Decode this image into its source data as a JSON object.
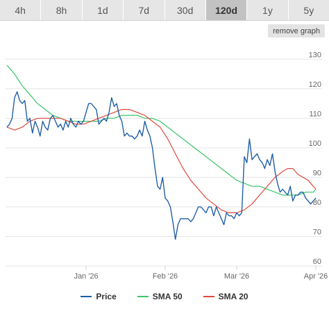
{
  "tabs": [
    {
      "label": "4h",
      "active": false
    },
    {
      "label": "8h",
      "active": false
    },
    {
      "label": "1d",
      "active": false
    },
    {
      "label": "7d",
      "active": false
    },
    {
      "label": "30d",
      "active": false
    },
    {
      "label": "120d",
      "active": true
    },
    {
      "label": "1y",
      "active": false
    },
    {
      "label": "5y",
      "active": false
    }
  ],
  "remove_graph_label": "remove graph",
  "colors": {
    "price": "#1f5fa6",
    "sma50": "#3cc46a",
    "sma20": "#e0483c",
    "grid": "#e5e5e5"
  },
  "chart_data": {
    "type": "line",
    "title": "",
    "xlabel": "",
    "ylabel": "",
    "ylim": [
      60,
      135
    ],
    "yticks": [
      60,
      70,
      80,
      90,
      100,
      110,
      120,
      130
    ],
    "xticks": [
      {
        "label": "Jan '26",
        "day": 31
      },
      {
        "label": "Feb '26",
        "day": 62
      },
      {
        "label": "Mar '26",
        "day": 90
      },
      {
        "label": "Apr '26",
        "day": 121
      }
    ],
    "x_range": [
      0,
      121
    ],
    "grid": true,
    "legend_position": "bottom",
    "series": [
      {
        "name": "Price",
        "color_key": "price",
        "points": [
          [
            0,
            107
          ],
          [
            1,
            108
          ],
          [
            2,
            110
          ],
          [
            3,
            117
          ],
          [
            4,
            119
          ],
          [
            5,
            116
          ],
          [
            6,
            115
          ],
          [
            7,
            116
          ],
          [
            8,
            109
          ],
          [
            9,
            110
          ],
          [
            10,
            105
          ],
          [
            11,
            109
          ],
          [
            12,
            107
          ],
          [
            13,
            104
          ],
          [
            14,
            109
          ],
          [
            15,
            107
          ],
          [
            16,
            106
          ],
          [
            17,
            110
          ],
          [
            18,
            111
          ],
          [
            19,
            109
          ],
          [
            20,
            107
          ],
          [
            21,
            108
          ],
          [
            22,
            106
          ],
          [
            23,
            109
          ],
          [
            24,
            107
          ],
          [
            25,
            110
          ],
          [
            26,
            108
          ],
          [
            27,
            107
          ],
          [
            28,
            109
          ],
          [
            29,
            108
          ],
          [
            30,
            109
          ],
          [
            31,
            112
          ],
          [
            32,
            115
          ],
          [
            33,
            115
          ],
          [
            34,
            114
          ],
          [
            35,
            113
          ],
          [
            36,
            108
          ],
          [
            37,
            109
          ],
          [
            38,
            110
          ],
          [
            39,
            109
          ],
          [
            40,
            112
          ],
          [
            41,
            117
          ],
          [
            42,
            114
          ],
          [
            43,
            115
          ],
          [
            44,
            111
          ],
          [
            45,
            109
          ],
          [
            46,
            104
          ],
          [
            47,
            105
          ],
          [
            48,
            104
          ],
          [
            49,
            104
          ],
          [
            50,
            103
          ],
          [
            51,
            104
          ],
          [
            52,
            106
          ],
          [
            53,
            104
          ],
          [
            54,
            109
          ],
          [
            55,
            106
          ],
          [
            56,
            104
          ],
          [
            57,
            100
          ],
          [
            58,
            93
          ],
          [
            59,
            87
          ],
          [
            60,
            86
          ],
          [
            61,
            90
          ],
          [
            62,
            83
          ],
          [
            63,
            82
          ],
          [
            64,
            80
          ],
          [
            65,
            75
          ],
          [
            66,
            69
          ],
          [
            67,
            74
          ],
          [
            68,
            76
          ],
          [
            69,
            76
          ],
          [
            70,
            76
          ],
          [
            71,
            76
          ],
          [
            72,
            75
          ],
          [
            73,
            76
          ],
          [
            74,
            78
          ],
          [
            75,
            80
          ],
          [
            76,
            80
          ],
          [
            77,
            79
          ],
          [
            78,
            78
          ],
          [
            79,
            80
          ],
          [
            80,
            80
          ],
          [
            81,
            77
          ],
          [
            82,
            80
          ],
          [
            83,
            78
          ],
          [
            84,
            76
          ],
          [
            85,
            74
          ],
          [
            86,
            78
          ],
          [
            87,
            77
          ],
          [
            88,
            77
          ],
          [
            89,
            76
          ],
          [
            90,
            78
          ],
          [
            91,
            77
          ],
          [
            92,
            78
          ],
          [
            93,
            97
          ],
          [
            94,
            95
          ],
          [
            95,
            103
          ],
          [
            96,
            96
          ],
          [
            97,
            97
          ],
          [
            98,
            98
          ],
          [
            99,
            96
          ],
          [
            100,
            95
          ],
          [
            101,
            93
          ],
          [
            102,
            96
          ],
          [
            103,
            94
          ],
          [
            104,
            98
          ],
          [
            105,
            92
          ],
          [
            106,
            88
          ],
          [
            107,
            85
          ],
          [
            108,
            86
          ],
          [
            109,
            85
          ],
          [
            110,
            84
          ],
          [
            111,
            87
          ],
          [
            112,
            82
          ],
          [
            113,
            84
          ],
          [
            114,
            84
          ],
          [
            115,
            85
          ],
          [
            116,
            85
          ],
          [
            117,
            83
          ],
          [
            118,
            82
          ],
          [
            119,
            81
          ],
          [
            120,
            82
          ],
          [
            121,
            83
          ]
        ]
      },
      {
        "name": "SMA 50",
        "color_key": "sma50",
        "points": [
          [
            0,
            128
          ],
          [
            3,
            125
          ],
          [
            6,
            121
          ],
          [
            9,
            118
          ],
          [
            12,
            115
          ],
          [
            15,
            113
          ],
          [
            18,
            111
          ],
          [
            21,
            110
          ],
          [
            24,
            109
          ],
          [
            27,
            109
          ],
          [
            30,
            109
          ],
          [
            33,
            109
          ],
          [
            36,
            109
          ],
          [
            39,
            110
          ],
          [
            42,
            110
          ],
          [
            45,
            111
          ],
          [
            48,
            111
          ],
          [
            51,
            111
          ],
          [
            54,
            110
          ],
          [
            57,
            110
          ],
          [
            60,
            109
          ],
          [
            63,
            107
          ],
          [
            66,
            105
          ],
          [
            69,
            103
          ],
          [
            72,
            101
          ],
          [
            75,
            99
          ],
          [
            78,
            97
          ],
          [
            81,
            95
          ],
          [
            84,
            93
          ],
          [
            87,
            91
          ],
          [
            90,
            89
          ],
          [
            93,
            88
          ],
          [
            96,
            87
          ],
          [
            99,
            87
          ],
          [
            102,
            86
          ],
          [
            105,
            85
          ],
          [
            108,
            84
          ],
          [
            111,
            84
          ],
          [
            114,
            84
          ],
          [
            117,
            85
          ],
          [
            120,
            85
          ],
          [
            121,
            86
          ]
        ]
      },
      {
        "name": "SMA 20",
        "color_key": "sma20",
        "points": [
          [
            0,
            107
          ],
          [
            3,
            106
          ],
          [
            6,
            107
          ],
          [
            9,
            109
          ],
          [
            12,
            110
          ],
          [
            15,
            110
          ],
          [
            18,
            110
          ],
          [
            21,
            110
          ],
          [
            24,
            109
          ],
          [
            27,
            108
          ],
          [
            30,
            108
          ],
          [
            33,
            109
          ],
          [
            36,
            110
          ],
          [
            39,
            111
          ],
          [
            42,
            112
          ],
          [
            45,
            113
          ],
          [
            48,
            113
          ],
          [
            51,
            112
          ],
          [
            54,
            111
          ],
          [
            57,
            109
          ],
          [
            60,
            107
          ],
          [
            63,
            103
          ],
          [
            66,
            98
          ],
          [
            69,
            93
          ],
          [
            72,
            89
          ],
          [
            75,
            86
          ],
          [
            78,
            83
          ],
          [
            81,
            81
          ],
          [
            84,
            79
          ],
          [
            87,
            78
          ],
          [
            90,
            78
          ],
          [
            93,
            79
          ],
          [
            96,
            81
          ],
          [
            99,
            84
          ],
          [
            102,
            87
          ],
          [
            105,
            90
          ],
          [
            108,
            92
          ],
          [
            110,
            93
          ],
          [
            112,
            93
          ],
          [
            114,
            91
          ],
          [
            116,
            90
          ],
          [
            118,
            89
          ],
          [
            120,
            87
          ],
          [
            121,
            86
          ]
        ]
      }
    ]
  }
}
